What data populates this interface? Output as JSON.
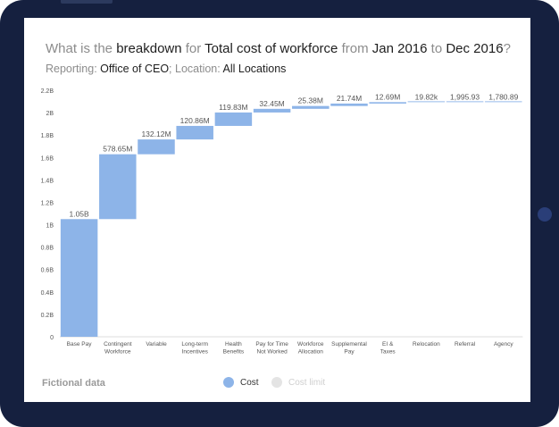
{
  "title": {
    "q1": "What is the ",
    "measure": "breakdown",
    "q2": " for ",
    "metric": "Total cost of workforce",
    "q3": " from ",
    "start": "Jan 2016",
    "q4": " to ",
    "end": "Dec 2016",
    "q5": "?"
  },
  "subtitle": {
    "reporting_label": "Reporting: ",
    "reporting_value": "Office of CEO",
    "sep": "; ",
    "location_label": "Location: ",
    "location_value": "All Locations"
  },
  "footer": {
    "note": "Fictional data"
  },
  "legend": {
    "items": [
      {
        "label": "Cost",
        "color": "#8db4e8",
        "active": true
      },
      {
        "label": "Cost limit",
        "color": "#e4e4e4",
        "active": false
      }
    ]
  },
  "chart_data": {
    "type": "bar",
    "subtype": "waterfall",
    "categories": [
      [
        "Base Pay"
      ],
      [
        "Contingent",
        "Workforce"
      ],
      [
        "Variable"
      ],
      [
        "Long-term",
        "Incentives"
      ],
      [
        "Health",
        "Benefits"
      ],
      [
        "Pay for Time",
        "Not Worked"
      ],
      [
        "Workforce",
        "Allocation"
      ],
      [
        "Supplemental",
        "Pay"
      ],
      [
        "EI &",
        "Taxes"
      ],
      [
        "Relocation"
      ],
      [
        "Referral"
      ],
      [
        "Agency"
      ]
    ],
    "values": [
      1050000000,
      578650000,
      132120000,
      120860000,
      119830000,
      32450000,
      25380000,
      21740000,
      12690000,
      19820,
      1995.93,
      1780.89
    ],
    "value_labels": [
      "1.05B",
      "578.65M",
      "132.12M",
      "120.86M",
      "119.83M",
      "32.45M",
      "25.38M",
      "21.74M",
      "12.69M",
      "19.82k",
      "1,995.93",
      "1,780.89"
    ],
    "ylim": [
      0,
      2200000000
    ],
    "yticks": [
      0,
      200000000,
      400000000,
      600000000,
      800000000,
      1000000000,
      1200000000,
      1400000000,
      1600000000,
      1800000000,
      2000000000,
      2200000000
    ],
    "ytick_labels": [
      "0",
      "0.2B",
      "0.4B",
      "0.6B",
      "0.8B",
      "1B",
      "1.2B",
      "1.4B",
      "1.6B",
      "1.8B",
      "2B",
      "2.2B"
    ],
    "bar_color": "#8db4e8",
    "grid": false,
    "legend_position": "bottom"
  }
}
